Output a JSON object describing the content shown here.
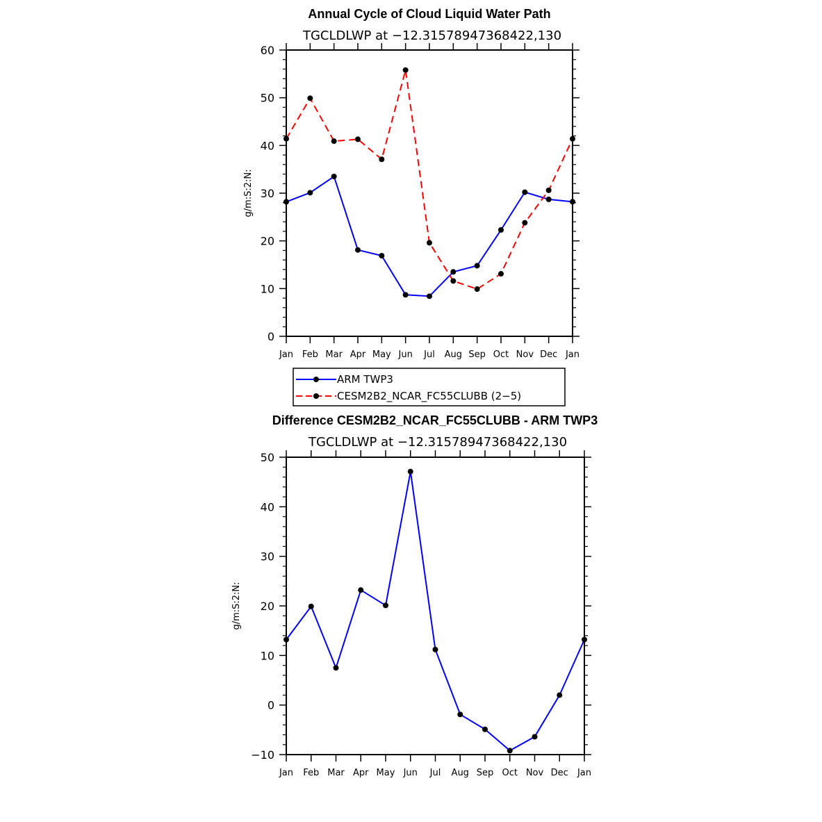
{
  "chart_data": [
    {
      "type": "line",
      "title": "Annual Cycle of Cloud Liquid Water Path",
      "subtitle": "TGCLDLWP at −12.31578947368422,130",
      "ylabel": "g/m:S:2:N:",
      "ylim": [
        0,
        60
      ],
      "yticks": [
        0,
        10,
        20,
        30,
        40,
        50,
        60
      ],
      "categories": [
        "Jan",
        "Feb",
        "Mar",
        "Apr",
        "May",
        "Jun",
        "Jul",
        "Aug",
        "Sep",
        "Oct",
        "Nov",
        "Dec",
        "Jan"
      ],
      "grid": false,
      "legend": "below",
      "series": [
        {
          "name": "ARM TWP3",
          "color": "#0000ff",
          "dash": "solid",
          "values": [
            28.2,
            30.1,
            33.5,
            18.1,
            16.9,
            8.7,
            8.4,
            13.5,
            14.8,
            22.3,
            30.2,
            28.7,
            28.2
          ]
        },
        {
          "name": "CESM2B2_NCAR_FC55CLUBB (2−5)",
          "color": "#ff0000",
          "dash": "dashed",
          "values": [
            41.4,
            49.9,
            40.9,
            41.3,
            37.1,
            55.8,
            19.6,
            11.6,
            9.9,
            13.1,
            23.8,
            30.6,
            41.4
          ]
        }
      ]
    },
    {
      "type": "line",
      "title": "Difference CESM2B2_NCAR_FC55CLUBB - ARM TWP3",
      "subtitle": "TGCLDLWP at −12.31578947368422,130",
      "ylabel": "g/m:S:2:N:",
      "ylim": [
        -10,
        50
      ],
      "yticks": [
        -10,
        0,
        10,
        20,
        30,
        40,
        50
      ],
      "yticklabels": [
        "−10",
        "0",
        "10",
        "20",
        "30",
        "40",
        "50"
      ],
      "categories": [
        "Jan",
        "Feb",
        "Mar",
        "Apr",
        "May",
        "Jun",
        "Jul",
        "Aug",
        "Sep",
        "Oct",
        "Nov",
        "Dec",
        "Jan"
      ],
      "grid": false,
      "series": [
        {
          "color": "#0000ff",
          "dash": "solid",
          "values": [
            13.2,
            19.9,
            7.5,
            23.2,
            20.1,
            47.1,
            11.2,
            -1.9,
            -4.9,
            -9.2,
            -6.4,
            2.0,
            13.2
          ]
        }
      ]
    }
  ]
}
